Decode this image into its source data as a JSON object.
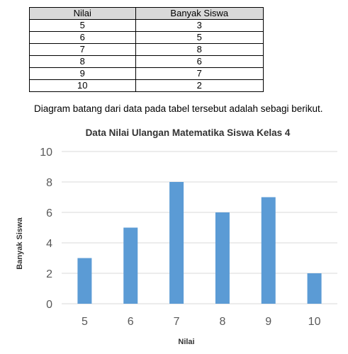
{
  "table": {
    "headers": [
      "Nilai",
      "Banyak Siswa"
    ],
    "rows": [
      [
        "5",
        "3"
      ],
      [
        "6",
        "5"
      ],
      [
        "7",
        "8"
      ],
      [
        "8",
        "6"
      ],
      [
        "9",
        "7"
      ],
      [
        "10",
        "2"
      ]
    ]
  },
  "sentence": "Diagram batang dari data pada tabel tersebut adalah sebagi berikut.",
  "chart_data": {
    "type": "bar",
    "title": "Data Nilai Ulangan Matematika Siswa Kelas 4",
    "xlabel": "Nilai",
    "ylabel": "Banyak Siswa",
    "categories": [
      "5",
      "6",
      "7",
      "8",
      "9",
      "10"
    ],
    "values": [
      3,
      5,
      8,
      6,
      7,
      2
    ],
    "ylim": [
      0,
      10
    ],
    "yticks": [
      0,
      2,
      4,
      6,
      8,
      10
    ],
    "grid": true,
    "legend": "none",
    "bar_color": "#5b9bd5"
  }
}
